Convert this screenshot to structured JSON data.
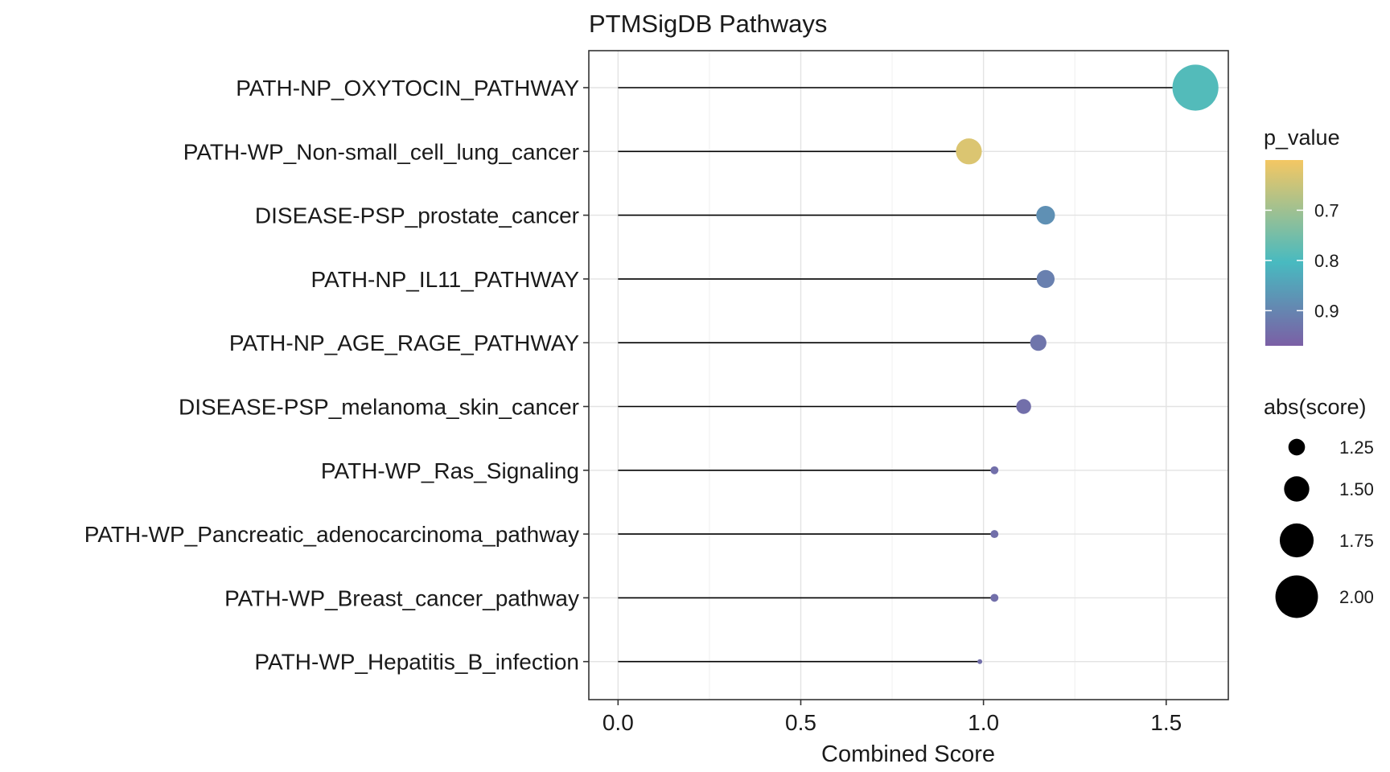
{
  "chart_data": {
    "type": "lollipop",
    "title": "PTMSigDB Pathways",
    "xlabel": "Combined Score",
    "ylabel": "",
    "xlim": [
      -0.08,
      1.67
    ],
    "x_ticks": [
      0.0,
      0.5,
      1.0,
      1.5
    ],
    "x_tick_labels": [
      "0.0",
      "0.5",
      "1.0",
      "1.5"
    ],
    "grid": true,
    "categories": [
      "PATH-NP_OXYTOCIN_PATHWAY",
      "PATH-WP_Non-small_cell_lung_cancer",
      "DISEASE-PSP_prostate_cancer",
      "PATH-NP_IL11_PATHWAY",
      "PATH-NP_AGE_RAGE_PATHWAY",
      "DISEASE-PSP_melanoma_skin_cancer",
      "PATH-WP_Ras_Signaling",
      "PATH-WP_Pancreatic_adenocarcinoma_pathway",
      "PATH-WP_Breast_cancer_pathway",
      "PATH-WP_Hepatitis_B_infection"
    ],
    "values": [
      1.58,
      0.96,
      1.17,
      1.17,
      1.15,
      1.11,
      1.03,
      1.03,
      1.03,
      0.99
    ],
    "p_value": [
      0.79,
      0.63,
      0.88,
      0.91,
      0.93,
      0.94,
      0.94,
      0.94,
      0.94,
      0.94
    ],
    "abs_score": [
      2.1,
      1.52,
      1.31,
      1.29,
      1.24,
      1.2,
      1.0,
      1.0,
      1.0,
      0.82
    ],
    "legend_color": {
      "title": "p_value",
      "ticks": [
        "0.7",
        "0.8",
        "0.9"
      ],
      "tick_values": [
        0.7,
        0.8,
        0.9
      ],
      "range": [
        0.6,
        0.97
      ],
      "colors": [
        "#f4c763",
        "#48bac0",
        "#7b5fa5"
      ],
      "placement": "right"
    },
    "legend_size": {
      "title": "abs(score)",
      "labels": [
        "1.25",
        "1.50",
        "1.75",
        "2.00"
      ],
      "values": [
        1.25,
        1.5,
        1.75,
        2.0
      ],
      "placement": "right"
    }
  }
}
